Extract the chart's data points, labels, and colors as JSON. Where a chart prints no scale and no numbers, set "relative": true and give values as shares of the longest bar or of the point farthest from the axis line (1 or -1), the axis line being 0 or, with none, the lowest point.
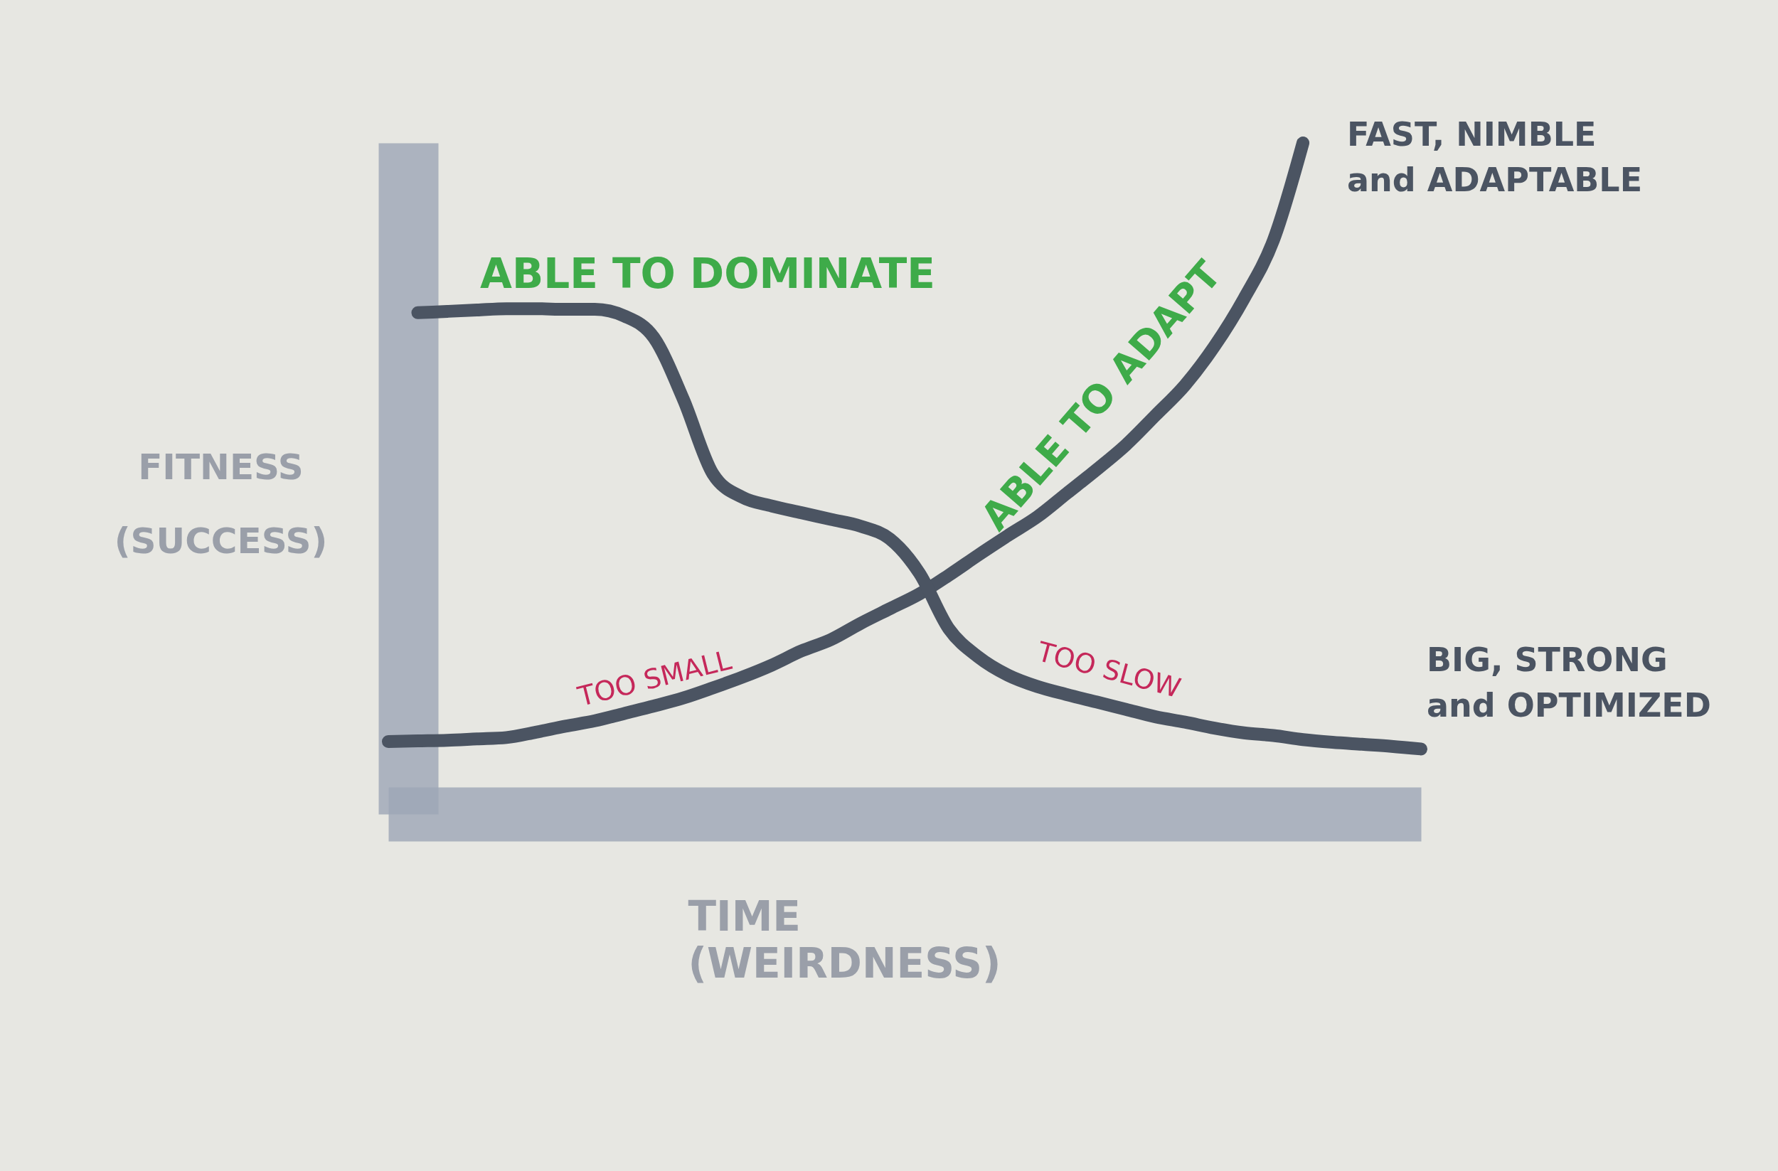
{
  "chart_data": {
    "type": "line",
    "relative": true,
    "xlabel": "TIME (WEIRDNESS)",
    "ylabel": "FITNESS (SUCCESS)",
    "annotations": [
      "ABLE TO DOMINATE",
      "ABLE TO ADAPT",
      "TOO SMALL",
      "TOO SLOW"
    ],
    "categories": [
      null,
      null,
      null,
      null,
      null,
      null,
      null,
      null,
      null,
      null,
      null,
      null,
      null,
      null,
      null,
      null,
      null,
      null,
      null,
      null,
      null,
      null,
      null,
      null,
      null,
      null,
      null,
      null,
      null,
      null,
      null,
      null,
      null,
      null,
      null,
      null
    ],
    "series": [
      {
        "name": "FAST, NIMBLE and ADAPTABLE",
        "color": "#4b5462",
        "values": [
          0.108,
          0.109,
          0.11,
          0.112,
          0.114,
          0.122,
          0.131,
          0.139,
          0.15,
          0.161,
          0.173,
          0.188,
          0.204,
          0.222,
          0.243,
          0.26,
          0.284,
          0.306,
          0.328,
          0.356,
          0.386,
          0.415,
          0.443,
          0.478,
          0.513,
          0.55,
          0.594,
          0.639,
          0.697,
          0.768,
          0.855,
          1.0,
          null,
          null,
          null,
          null
        ]
      },
      {
        "name": "BIG, STRONG and OPTIMIZED",
        "color": "#4b5462",
        "values": [
          null,
          0.747,
          0.749,
          0.751,
          0.753,
          0.753,
          0.752,
          0.752,
          0.742,
          0.71,
          0.618,
          0.507,
          0.472,
          0.459,
          0.449,
          0.439,
          0.429,
          0.41,
          0.359,
          0.276,
          0.234,
          0.207,
          0.19,
          0.178,
          0.167,
          0.156,
          0.145,
          0.137,
          0.128,
          0.121,
          0.117,
          0.111,
          0.107,
          0.104,
          0.101,
          0.097
        ]
      }
    ]
  }
}
